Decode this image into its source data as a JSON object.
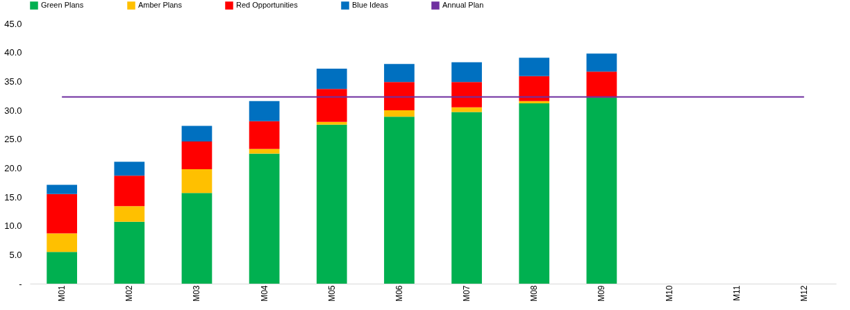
{
  "chart_data": {
    "type": "bar",
    "stacked": true,
    "categories": [
      "M01",
      "M02",
      "M03",
      "M04",
      "M05",
      "M06",
      "M07",
      "M08",
      "M09",
      "M10",
      "M11",
      "M12"
    ],
    "series": [
      {
        "name": "Green Plans",
        "color": "#00b050",
        "values": [
          5.5,
          10.7,
          15.7,
          22.5,
          27.5,
          28.9,
          29.7,
          31.2,
          32.2,
          null,
          null,
          null
        ]
      },
      {
        "name": "Amber Plans",
        "color": "#ffc000",
        "values": [
          3.2,
          2.7,
          4.1,
          0.8,
          0.5,
          1.1,
          0.8,
          0.4,
          0,
          null,
          null,
          null
        ]
      },
      {
        "name": "Red Opportunities",
        "color": "#ff0000",
        "values": [
          6.8,
          5.3,
          4.8,
          4.8,
          5.7,
          4.9,
          4.4,
          4.3,
          4.5,
          null,
          null,
          null
        ]
      },
      {
        "name": "Blue Ideas",
        "color": "#0070c0",
        "values": [
          1.6,
          2.4,
          2.7,
          3.5,
          3.5,
          3.1,
          3.4,
          3.2,
          3.1,
          null,
          null,
          null
        ]
      },
      {
        "name": "Annual Plan",
        "color": "#7030a0",
        "type": "line",
        "values": [
          32.3,
          32.3,
          32.3,
          32.3,
          32.3,
          32.3,
          32.3,
          32.3,
          32.3,
          32.3,
          32.3,
          32.3
        ]
      }
    ],
    "ylim": [
      0,
      45
    ],
    "yticks": [
      {
        "value": 0,
        "label": "-"
      },
      {
        "value": 5,
        "label": "5.0"
      },
      {
        "value": 10,
        "label": "10.0"
      },
      {
        "value": 15,
        "label": "15.0"
      },
      {
        "value": 20,
        "label": "20.0"
      },
      {
        "value": 25,
        "label": "25.0"
      },
      {
        "value": 30,
        "label": "30.0"
      },
      {
        "value": 35,
        "label": "35.0"
      },
      {
        "value": 40,
        "label": "40.0"
      },
      {
        "value": 45,
        "label": "45.0"
      }
    ],
    "legend": "top",
    "grid": false
  }
}
